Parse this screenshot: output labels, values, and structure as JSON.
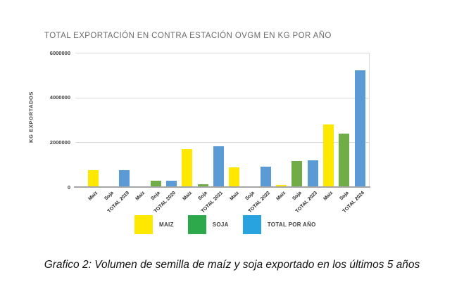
{
  "title": "TOTAL EXPORTACIÓN EN CONTRA ESTACIÓN OVGM EN KG POR AÑO",
  "caption": "Grafico 2: Volumen de semilla de maíz y soja exportado en los últimos 5 años",
  "colors": {
    "maiz": "#FFE800",
    "soja": "#70AD47",
    "total": "#5B9BD5",
    "legend_maiz": "#FFE800",
    "legend_soja": "#2DA84B",
    "legend_total": "#29A3E0",
    "gridline": "#D9D9D9",
    "axis_line": "#A6A6A6"
  },
  "y_axis": {
    "label": "KG EXPORTADOS",
    "tick_labels": [
      "6000000",
      "4000000",
      "2000000",
      "0"
    ]
  },
  "legend": {
    "position": "bottom",
    "items": [
      {
        "label": "MAIZ",
        "series": "maiz"
      },
      {
        "label": "SOJA",
        "series": "soja"
      },
      {
        "label": "TOTAL POR AÑO",
        "series": "total"
      }
    ]
  },
  "chart_data": {
    "type": "bar",
    "title": "TOTAL EXPORTACIÓN EN CONTRA ESTACIÓN OVGM EN KG POR AÑO",
    "xlabel": "",
    "ylabel": "KG EXPORTADOS",
    "ylim": [
      0,
      6000000
    ],
    "yticks": [
      0,
      2000000,
      4000000,
      6000000
    ],
    "grid": true,
    "legend_entries": [
      "MAIZ",
      "SOJA",
      "TOTAL POR AÑO"
    ],
    "legend_position": "bottom",
    "categories": [
      "Maiz",
      "Soja",
      "TOTAL 2019",
      "Maiz",
      "Soja",
      "TOTAL 2020",
      "Maiz",
      "Soja",
      "TOTAL 2021",
      "Maiz",
      "Soja",
      "TOTAL 2022",
      "Maiz",
      "Soja",
      "TOTAL 2023",
      "Maiz",
      "Soja",
      "TOTAL 2024"
    ],
    "values": [
      750000,
      0,
      750000,
      0,
      280000,
      280000,
      1700000,
      120000,
      1820000,
      880000,
      0,
      900000,
      80000,
      1150000,
      1180000,
      2800000,
      2400000,
      5200000
    ],
    "bars": [
      {
        "label": "Maiz",
        "series": "maiz",
        "value": 750000
      },
      {
        "label": "Soja",
        "series": "soja",
        "value": 0
      },
      {
        "label": "TOTAL 2019",
        "series": "total",
        "value": 750000
      },
      {
        "label": "Maiz",
        "series": "maiz",
        "value": 0
      },
      {
        "label": "Soja",
        "series": "soja",
        "value": 280000
      },
      {
        "label": "TOTAL 2020",
        "series": "total",
        "value": 280000
      },
      {
        "label": "Maiz",
        "series": "maiz",
        "value": 1700000
      },
      {
        "label": "Soja",
        "series": "soja",
        "value": 120000
      },
      {
        "label": "TOTAL 2021",
        "series": "total",
        "value": 1820000
      },
      {
        "label": "Maiz",
        "series": "maiz",
        "value": 880000
      },
      {
        "label": "Soja",
        "series": "soja",
        "value": 0
      },
      {
        "label": "TOTAL 2022",
        "series": "total",
        "value": 900000
      },
      {
        "label": "Maiz",
        "series": "maiz",
        "value": 80000
      },
      {
        "label": "Soja",
        "series": "soja",
        "value": 1150000
      },
      {
        "label": "TOTAL 2023",
        "series": "total",
        "value": 1180000
      },
      {
        "label": "Maiz",
        "series": "maiz",
        "value": 2800000
      },
      {
        "label": "Soja",
        "series": "soja",
        "value": 2400000
      },
      {
        "label": "TOTAL 2024",
        "series": "total",
        "value": 5200000
      }
    ]
  }
}
